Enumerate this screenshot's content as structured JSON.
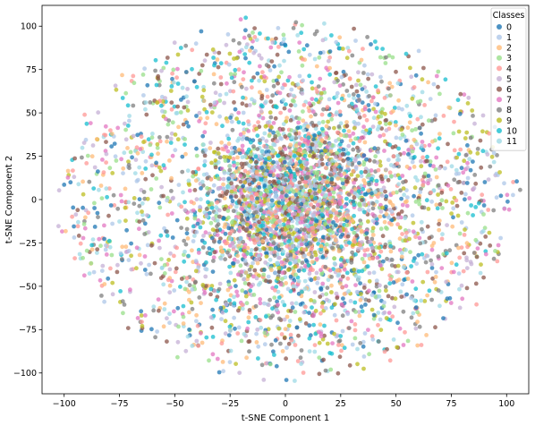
{
  "chart_data": {
    "type": "scatter",
    "title": "",
    "xlabel": "t-SNE Component 1",
    "ylabel": "t-SNE Component 2",
    "xlim": [
      -110,
      110
    ],
    "ylim": [
      -112,
      112
    ],
    "xticks": [
      -100,
      -75,
      -50,
      -25,
      0,
      25,
      50,
      75,
      100
    ],
    "yticks": [
      -100,
      -75,
      -50,
      -25,
      0,
      25,
      50,
      75,
      100
    ],
    "grid": false,
    "legend": {
      "title": "Classes",
      "placement": "top-right"
    },
    "distribution": {
      "points_per_class": 380,
      "dense_core_center": [
        5,
        0
      ],
      "dense_core_spread": [
        26,
        30
      ],
      "ring_radius_range": [
        60,
        102
      ]
    },
    "series": [
      {
        "name": "0",
        "color": "#1f77b4"
      },
      {
        "name": "1",
        "color": "#aec7e8"
      },
      {
        "name": "2",
        "color": "#ffbb78"
      },
      {
        "name": "3",
        "color": "#98df8a"
      },
      {
        "name": "4",
        "color": "#ff9896"
      },
      {
        "name": "5",
        "color": "#c5b0d5"
      },
      {
        "name": "6",
        "color": "#8c564b"
      },
      {
        "name": "7",
        "color": "#e377c2"
      },
      {
        "name": "8",
        "color": "#7f7f7f"
      },
      {
        "name": "9",
        "color": "#bcbd22"
      },
      {
        "name": "10",
        "color": "#17becf"
      },
      {
        "name": "11",
        "color": "#9edae5"
      }
    ]
  }
}
